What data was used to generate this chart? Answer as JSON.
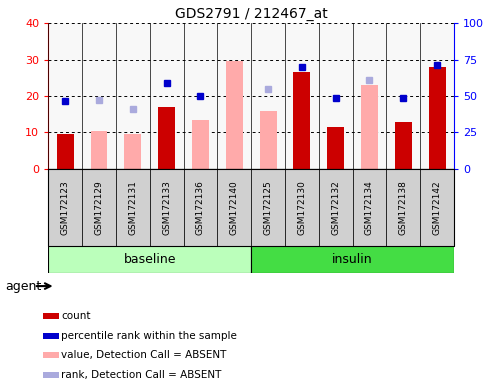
{
  "title": "GDS2791 / 212467_at",
  "samples": [
    "GSM172123",
    "GSM172129",
    "GSM172131",
    "GSM172133",
    "GSM172136",
    "GSM172140",
    "GSM172125",
    "GSM172130",
    "GSM172132",
    "GSM172134",
    "GSM172138",
    "GSM172142"
  ],
  "groups": [
    "baseline",
    "baseline",
    "baseline",
    "baseline",
    "baseline",
    "baseline",
    "insulin",
    "insulin",
    "insulin",
    "insulin",
    "insulin",
    "insulin"
  ],
  "count": [
    9.5,
    null,
    null,
    17,
    null,
    null,
    null,
    26.5,
    11.5,
    null,
    13,
    28
  ],
  "percentile_rank": [
    18.5,
    null,
    null,
    23.5,
    20,
    null,
    null,
    28,
    19.5,
    null,
    19.5,
    28.5
  ],
  "value_absent": [
    null,
    10.5,
    9.5,
    null,
    13.5,
    29.5,
    16,
    null,
    null,
    23,
    null,
    null
  ],
  "rank_absent": [
    null,
    19,
    16.5,
    null,
    null,
    null,
    22,
    null,
    null,
    24.5,
    null,
    null
  ],
  "ylim": [
    0,
    40
  ],
  "yticks": [
    0,
    10,
    20,
    30,
    40
  ],
  "ytick_labels_left": [
    "0",
    "10",
    "20",
    "30",
    "40"
  ],
  "ytick_labels_right": [
    "0",
    "25",
    "50",
    "75",
    "100%"
  ],
  "baseline_color_light": "#bbffbb",
  "baseline_color": "#bbffbb",
  "insulin_color": "#44dd44",
  "bar_color_count": "#cc0000",
  "bar_color_absent": "#ffaaaa",
  "dot_color_rank": "#0000cc",
  "dot_color_rank_absent": "#aaaadd",
  "legend_items": [
    {
      "label": "count",
      "color": "#cc0000"
    },
    {
      "label": "percentile rank within the sample",
      "color": "#0000cc"
    },
    {
      "label": "value, Detection Call = ABSENT",
      "color": "#ffaaaa"
    },
    {
      "label": "rank, Detection Call = ABSENT",
      "color": "#aaaadd"
    }
  ],
  "cell_bg": "#d0d0d0",
  "plot_bg": "#f8f8f8"
}
